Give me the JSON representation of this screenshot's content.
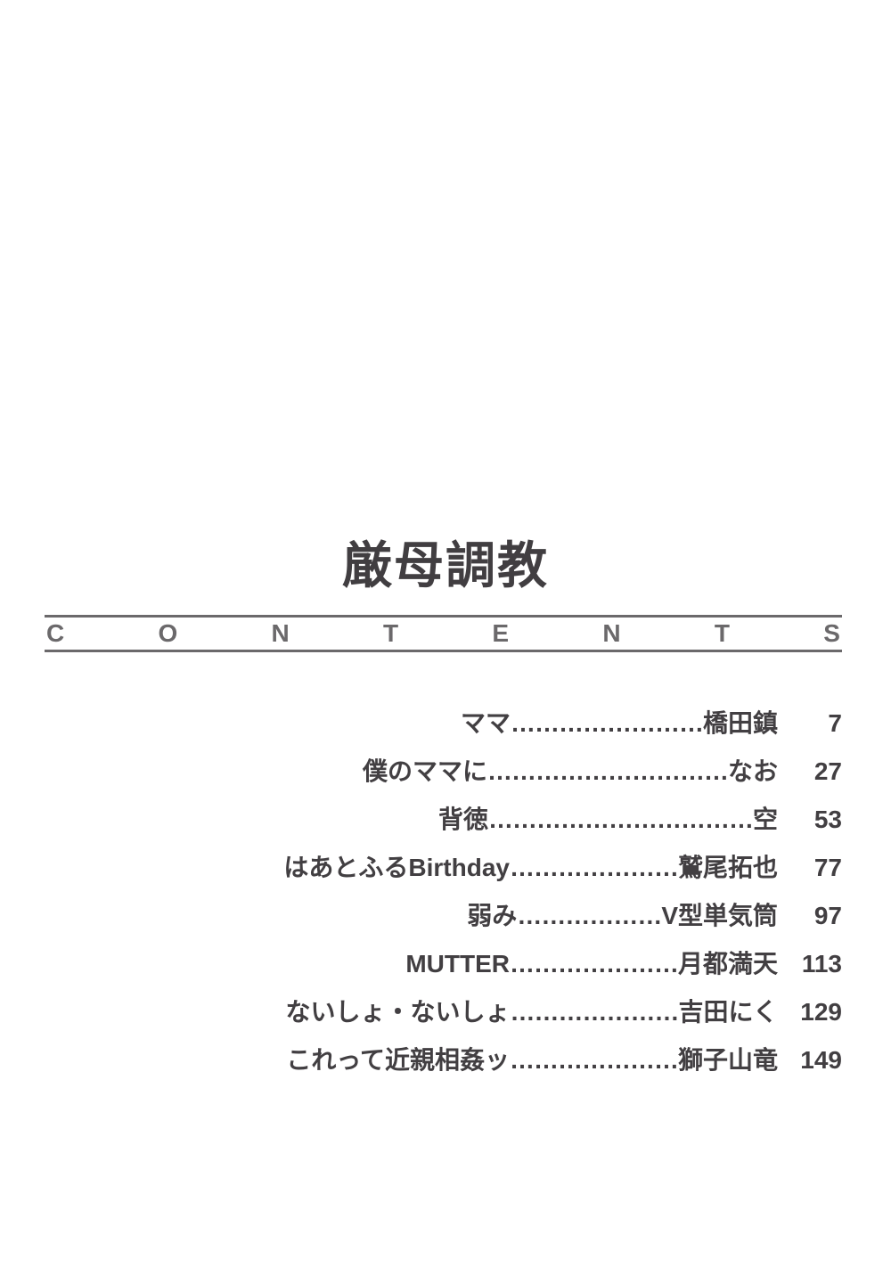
{
  "title": "厳母調教",
  "contents_label_letters": [
    "C",
    "O",
    "N",
    "T",
    "E",
    "N",
    "T",
    "S"
  ],
  "text_color": "#423f42",
  "bar_color": "#6b696b",
  "background_color": "#ffffff",
  "title_fontsize": 56,
  "row_fontsize": 28,
  "toc": [
    {
      "title": "ママ",
      "dots": "……………………",
      "author": "橋田鎮",
      "page": "7"
    },
    {
      "title": "僕のママに",
      "dots": "…………………………",
      "author": "なお",
      "page": "27"
    },
    {
      "title": "背徳",
      "dots": "……………………………",
      "author": "空",
      "page": "53"
    },
    {
      "title": "はあとふるBirthday",
      "dots": "…………………",
      "author": "鷲尾拓也",
      "page": "77"
    },
    {
      "title": "弱み",
      "dots": "………………",
      "author": "V型単気筒",
      "page": "97"
    },
    {
      "title": "MUTTER",
      "dots": "…………………",
      "author": "月都満天",
      "page": "113"
    },
    {
      "title": "ないしょ・ないしょ",
      "dots": "…………………",
      "author": "吉田にく",
      "page": "129"
    },
    {
      "title": "これって近親相姦ッ",
      "dots": "…………………",
      "author": "獅子山竜",
      "page": "149"
    }
  ]
}
